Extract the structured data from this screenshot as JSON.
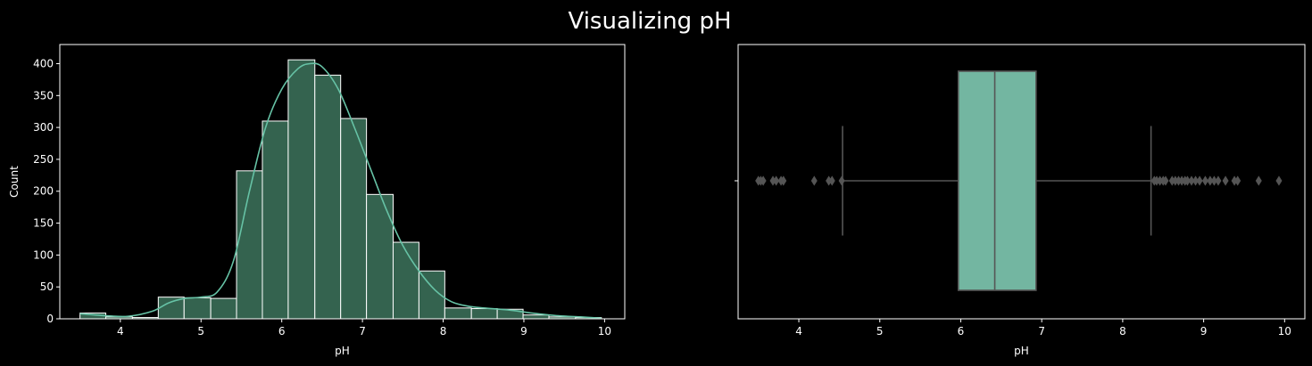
{
  "title": "Visualizing pH",
  "colors": {
    "background": "#000000",
    "axes": "#ffffff",
    "hist_bar": "#34634f",
    "hist_edge": "#ffffff",
    "kde": "#66c2a5",
    "box_fill": "#73b6a1",
    "box_line": "#555555"
  },
  "chart_data": [
    {
      "type": "bar",
      "subtype": "histogram",
      "xlabel": "pH",
      "ylabel": "Count",
      "xlim": [
        3.25,
        10.25
      ],
      "ylim": [
        0,
        430
      ],
      "xticks": [
        4,
        5,
        6,
        7,
        8,
        9,
        10
      ],
      "yticks": [
        0,
        50,
        100,
        150,
        200,
        250,
        300,
        350,
        400
      ],
      "bin_edges": [
        3.5,
        3.82,
        4.15,
        4.47,
        4.79,
        5.12,
        5.44,
        5.76,
        6.08,
        6.41,
        6.73,
        7.05,
        7.38,
        7.7,
        8.02,
        8.35,
        8.67,
        8.99,
        9.31,
        9.64,
        9.96
      ],
      "counts": [
        9,
        3,
        2,
        34,
        33,
        32,
        232,
        310,
        406,
        382,
        314,
        195,
        120,
        75,
        17,
        16,
        15,
        6,
        3,
        2
      ],
      "kde": {
        "x": [
          3.5,
          3.8,
          4.1,
          4.4,
          4.6,
          4.8,
          5.0,
          5.2,
          5.4,
          5.6,
          5.8,
          6.0,
          6.2,
          6.35,
          6.5,
          6.7,
          6.9,
          7.1,
          7.3,
          7.5,
          7.7,
          7.9,
          8.1,
          8.3,
          8.5,
          8.8,
          9.1,
          9.4,
          9.7,
          9.96
        ],
        "y": [
          8,
          5,
          4,
          12,
          25,
          32,
          34,
          42,
          90,
          200,
          300,
          360,
          392,
          400,
          395,
          360,
          300,
          235,
          170,
          115,
          75,
          45,
          27,
          20,
          17,
          14,
          9,
          5,
          3,
          1
        ]
      }
    },
    {
      "type": "box",
      "xlabel": "pH",
      "xlim": [
        3.25,
        10.25
      ],
      "xticks": [
        4,
        5,
        6,
        7,
        8,
        9,
        10
      ],
      "q1": 5.97,
      "median": 6.42,
      "q3": 6.93,
      "whisker_low": 4.54,
      "whisker_high": 8.35,
      "outliers": [
        3.5,
        3.53,
        3.56,
        3.68,
        3.72,
        3.78,
        3.81,
        4.19,
        4.37,
        4.41,
        4.53,
        8.39,
        8.42,
        8.46,
        8.5,
        8.53,
        8.61,
        8.65,
        8.69,
        8.73,
        8.77,
        8.8,
        8.85,
        8.9,
        8.95,
        9.02,
        9.08,
        9.13,
        9.18,
        9.27,
        9.38,
        9.42,
        9.68,
        9.93
      ]
    }
  ]
}
